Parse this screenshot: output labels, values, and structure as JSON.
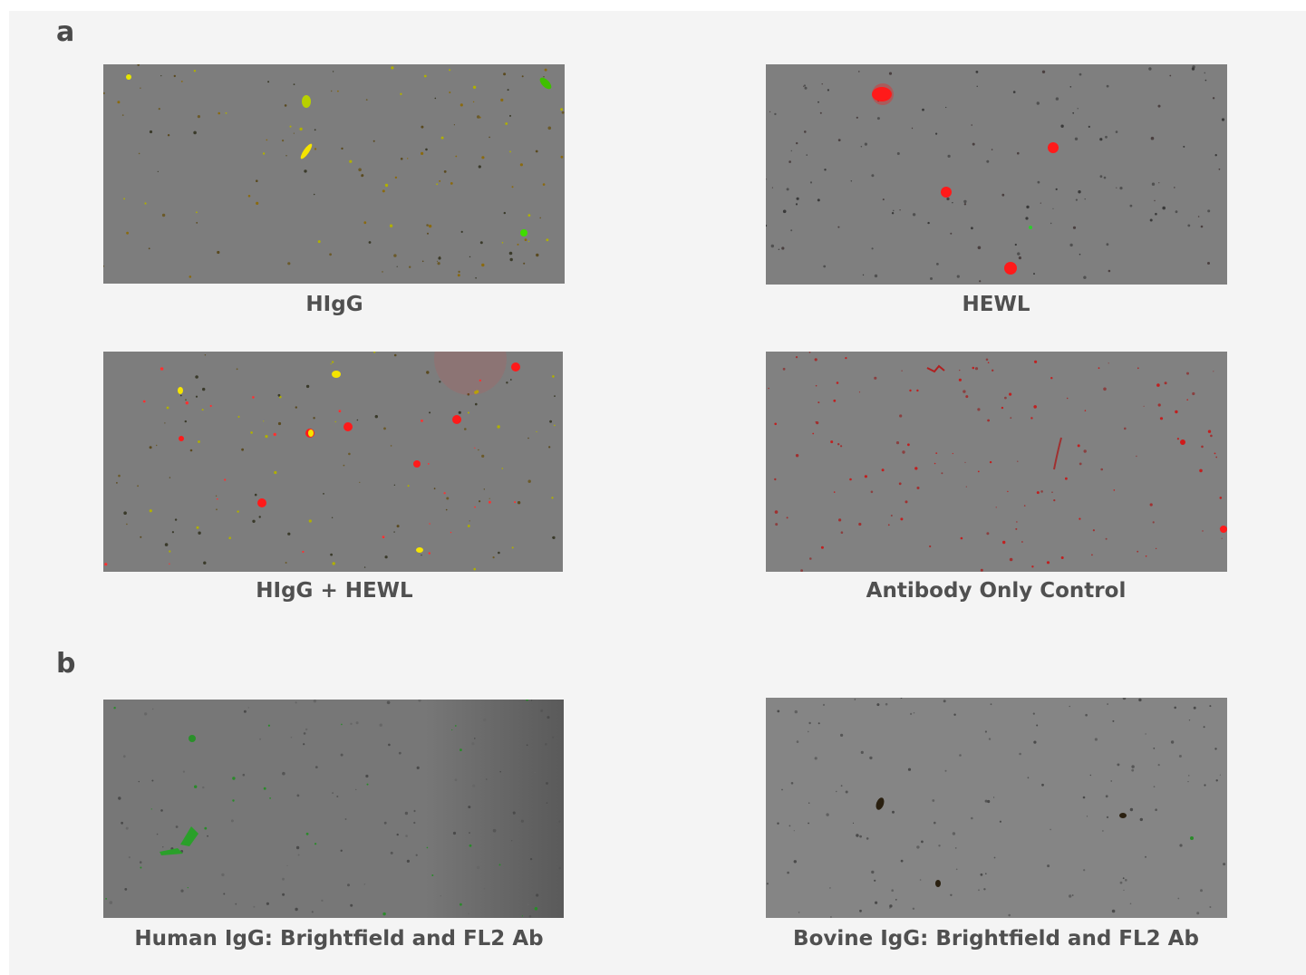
{
  "panels": [
    {
      "label": "a",
      "images": [
        {
          "caption": "HIgG"
        },
        {
          "caption": "HEWL"
        },
        {
          "caption": "HIgG + HEWL"
        },
        {
          "caption": "Antibody Only Control"
        }
      ]
    },
    {
      "label": "b",
      "images": [
        {
          "caption": "Human IgG: Brightfield and FL2 Ab"
        },
        {
          "caption": "Bovine IgG: Brightfield and FL2 Ab"
        }
      ]
    }
  ]
}
